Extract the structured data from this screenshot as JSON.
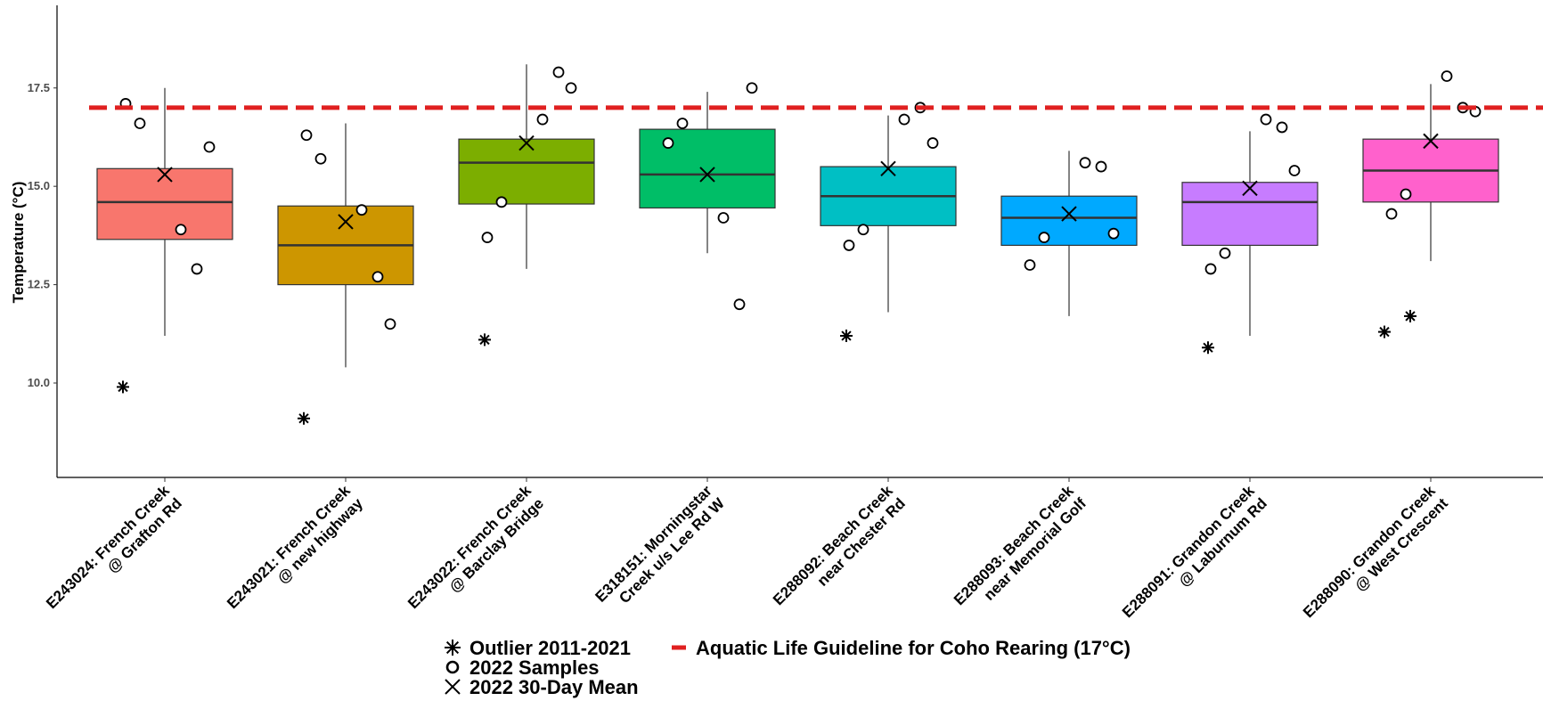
{
  "chart_data": {
    "type": "box",
    "title": "",
    "xlabel": "",
    "ylabel": "Temperature (°C)",
    "ylim": [
      7.6,
      19.6
    ],
    "yticks": [
      10.0,
      12.5,
      15.0,
      17.5
    ],
    "ytick_labels": [
      "10.0",
      "12.5",
      "15.0",
      "17.5"
    ],
    "grid": false,
    "guideline": {
      "value": 17.0,
      "color": "#e02020",
      "label": "Aquatic Life Guideline for Coho Rearing (17°C)"
    },
    "legend": {
      "placement": "bottom",
      "items": [
        {
          "key": "outlier",
          "label": "Outlier 2011-2021"
        },
        {
          "key": "sample",
          "label": "2022 Samples"
        },
        {
          "key": "mean",
          "label": "2022 30-Day Mean"
        }
      ]
    },
    "categories": [
      {
        "label": [
          "E243024: French Creek",
          "@ Grafton Rd"
        ],
        "color": "#f8766d",
        "box": {
          "whisker_low": 11.2,
          "q1": 13.65,
          "median": 14.6,
          "q3": 15.45,
          "whisker_high": 17.5
        },
        "mean": 15.3,
        "outliers": [
          9.9
        ],
        "samples": [
          13.9,
          12.9,
          16.0,
          16.6,
          17.1
        ]
      },
      {
        "label": [
          "E243021: French Creek",
          "@ new highway"
        ],
        "color": "#cd9600",
        "box": {
          "whisker_low": 10.4,
          "q1": 12.5,
          "median": 13.5,
          "q3": 14.5,
          "whisker_high": 16.6
        },
        "mean": 14.1,
        "outliers": [
          9.1
        ],
        "samples": [
          14.4,
          12.7,
          11.5,
          15.7,
          16.3
        ]
      },
      {
        "label": [
          "E243022: French Creek",
          "@ Barclay Bridge"
        ],
        "color": "#7cae00",
        "box": {
          "whisker_low": 12.9,
          "q1": 14.55,
          "median": 15.6,
          "q3": 16.2,
          "whisker_high": 18.1
        },
        "mean": 16.1,
        "outliers": [
          11.1
        ],
        "samples": [
          16.7,
          17.9,
          17.5,
          14.6,
          13.7
        ]
      },
      {
        "label": [
          "E318151: Morningstar",
          "Creek u/s Lee Rd W"
        ],
        "color": "#00be67",
        "box": {
          "whisker_low": 13.3,
          "q1": 14.45,
          "median": 15.3,
          "q3": 16.45,
          "whisker_high": 17.4
        },
        "mean": 15.3,
        "outliers": [],
        "samples": [
          14.2,
          12.0,
          17.5,
          16.6,
          16.1
        ]
      },
      {
        "label": [
          "E288092: Beach Creek",
          "near Chester Rd"
        ],
        "color": "#00bfc4",
        "box": {
          "whisker_low": 11.8,
          "q1": 14.0,
          "median": 14.75,
          "q3": 15.5,
          "whisker_high": 16.8
        },
        "mean": 15.45,
        "outliers": [
          11.2
        ],
        "samples": [
          16.7,
          17.0,
          16.1,
          13.9,
          13.5
        ]
      },
      {
        "label": [
          "E288093: Beach Creek",
          "near Memorial Golf"
        ],
        "color": "#00a9ff",
        "box": {
          "whisker_low": 11.7,
          "q1": 13.5,
          "median": 14.2,
          "q3": 14.75,
          "whisker_high": 15.9
        },
        "mean": 14.3,
        "outliers": [],
        "samples": [
          15.6,
          15.5,
          13.8,
          13.7,
          13.0
        ]
      },
      {
        "label": [
          "E288091: Grandon Creek",
          "@ Laburnum Rd"
        ],
        "color": "#c77cff",
        "box": {
          "whisker_low": 11.2,
          "q1": 13.5,
          "median": 14.6,
          "q3": 15.1,
          "whisker_high": 16.4
        },
        "mean": 14.95,
        "outliers": [
          10.9
        ],
        "samples": [
          16.7,
          16.5,
          15.4,
          13.3,
          12.9
        ]
      },
      {
        "label": [
          "E288090: Grandon Creek",
          "@ West Crescent"
        ],
        "color": "#ff61cc",
        "box": {
          "whisker_low": 13.1,
          "q1": 14.6,
          "median": 15.4,
          "q3": 16.2,
          "whisker_high": 17.6
        },
        "mean": 16.15,
        "outliers": [
          11.3,
          11.7
        ],
        "samples": [
          17.8,
          17.0,
          16.9,
          14.8,
          14.3
        ]
      }
    ]
  }
}
